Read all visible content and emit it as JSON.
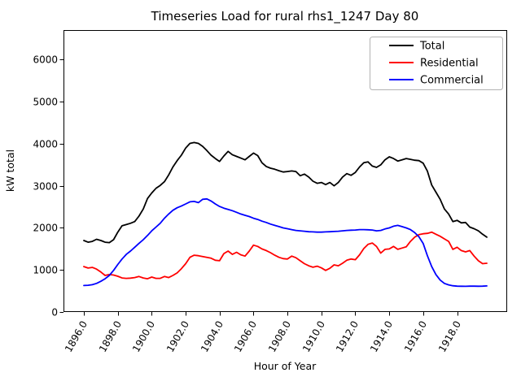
{
  "title": "Timeseries Load for rural rhs1_1247  Day 80",
  "chart_data": {
    "type": "line",
    "title": "Timeseries Load for rural rhs1_1247  Day 80",
    "xlabel": "Hour of Year",
    "ylabel": "kW total",
    "grid": false,
    "legend_position": "top-right",
    "xlim": [
      1894.8,
      1920.95
    ],
    "ylim": [
      0,
      6705
    ],
    "x_ticks": [
      1896,
      1898,
      1900,
      1902,
      1904,
      1906,
      1908,
      1910,
      1912,
      1914,
      1916,
      1918
    ],
    "x_tick_labels": [
      "1896.0",
      "1898.0",
      "1900.0",
      "1902.0",
      "1904.0",
      "1906.0",
      "1908.0",
      "1910.0",
      "1912.0",
      "1914.0",
      "1916.0",
      "1918.0"
    ],
    "y_ticks": [
      0,
      1000,
      2000,
      3000,
      4000,
      5000,
      6000
    ],
    "y_tick_labels": [
      "0",
      "1000",
      "2000",
      "3000",
      "4000",
      "5000",
      "6000"
    ],
    "x": [
      1896.0,
      1896.25,
      1896.5,
      1896.75,
      1897.0,
      1897.25,
      1897.5,
      1897.75,
      1898.0,
      1898.25,
      1898.5,
      1898.75,
      1899.0,
      1899.25,
      1899.5,
      1899.75,
      1900.0,
      1900.25,
      1900.5,
      1900.75,
      1901.0,
      1901.25,
      1901.5,
      1901.75,
      1902.0,
      1902.25,
      1902.5,
      1902.75,
      1903.0,
      1903.25,
      1903.5,
      1903.75,
      1904.0,
      1904.25,
      1904.5,
      1904.75,
      1905.0,
      1905.25,
      1905.5,
      1905.75,
      1906.0,
      1906.25,
      1906.5,
      1906.75,
      1907.0,
      1907.25,
      1907.5,
      1907.75,
      1908.0,
      1908.25,
      1908.5,
      1908.75,
      1909.0,
      1909.25,
      1909.5,
      1909.75,
      1910.0,
      1910.25,
      1910.5,
      1910.75,
      1911.0,
      1911.25,
      1911.5,
      1911.75,
      1912.0,
      1912.25,
      1912.5,
      1912.75,
      1913.0,
      1913.25,
      1913.5,
      1913.75,
      1914.0,
      1914.25,
      1914.5,
      1914.75,
      1915.0,
      1915.25,
      1915.5,
      1915.75,
      1916.0,
      1916.25,
      1916.5,
      1916.75,
      1917.0,
      1917.25,
      1917.5,
      1917.75,
      1918.0,
      1918.25,
      1918.5,
      1918.75,
      1919.0,
      1919.25,
      1919.5,
      1919.75
    ],
    "series": [
      {
        "name": "Total",
        "color": "#000000",
        "values": [
          1700,
          1660,
          1680,
          1730,
          1700,
          1660,
          1650,
          1720,
          1900,
          2050,
          2080,
          2110,
          2150,
          2280,
          2450,
          2700,
          2830,
          2940,
          3010,
          3100,
          3260,
          3450,
          3600,
          3730,
          3900,
          4010,
          4030,
          4010,
          3940,
          3840,
          3730,
          3650,
          3580,
          3710,
          3820,
          3740,
          3700,
          3660,
          3620,
          3700,
          3780,
          3720,
          3550,
          3460,
          3420,
          3395,
          3360,
          3330,
          3340,
          3355,
          3340,
          3240,
          3280,
          3210,
          3110,
          3060,
          3080,
          3030,
          3080,
          3000,
          3080,
          3210,
          3290,
          3250,
          3320,
          3450,
          3550,
          3570,
          3470,
          3440,
          3500,
          3620,
          3690,
          3650,
          3590,
          3620,
          3650,
          3630,
          3610,
          3600,
          3540,
          3350,
          3020,
          2850,
          2680,
          2450,
          2330,
          2150,
          2180,
          2120,
          2130,
          2020,
          1980,
          1930,
          1850,
          1780
        ]
      },
      {
        "name": "Residential",
        "color": "#ff0000",
        "values": [
          1080,
          1045,
          1060,
          1020,
          950,
          870,
          890,
          880,
          850,
          810,
          800,
          805,
          820,
          845,
          810,
          790,
          830,
          800,
          800,
          845,
          820,
          870,
          930,
          1030,
          1150,
          1300,
          1350,
          1340,
          1320,
          1300,
          1280,
          1230,
          1220,
          1390,
          1450,
          1370,
          1420,
          1360,
          1330,
          1450,
          1590,
          1560,
          1500,
          1460,
          1410,
          1350,
          1300,
          1270,
          1260,
          1330,
          1290,
          1220,
          1150,
          1100,
          1065,
          1090,
          1050,
          990,
          1040,
          1120,
          1100,
          1160,
          1230,
          1260,
          1245,
          1360,
          1510,
          1610,
          1640,
          1560,
          1400,
          1490,
          1500,
          1560,
          1490,
          1520,
          1550,
          1680,
          1780,
          1840,
          1860,
          1870,
          1900,
          1850,
          1800,
          1740,
          1680,
          1490,
          1540,
          1460,
          1430,
          1460,
          1330,
          1220,
          1150,
          1160
        ]
      },
      {
        "name": "Commercial",
        "color": "#0000ff",
        "values": [
          630,
          635,
          650,
          680,
          730,
          790,
          870,
          990,
          1130,
          1260,
          1370,
          1450,
          1540,
          1630,
          1720,
          1820,
          1930,
          2020,
          2110,
          2230,
          2330,
          2420,
          2480,
          2520,
          2570,
          2620,
          2630,
          2600,
          2680,
          2690,
          2640,
          2570,
          2510,
          2470,
          2440,
          2410,
          2370,
          2330,
          2300,
          2270,
          2230,
          2200,
          2160,
          2130,
          2090,
          2060,
          2030,
          2000,
          1980,
          1960,
          1940,
          1930,
          1920,
          1910,
          1905,
          1900,
          1900,
          1905,
          1910,
          1915,
          1920,
          1930,
          1940,
          1945,
          1950,
          1960,
          1960,
          1955,
          1950,
          1930,
          1940,
          1975,
          2000,
          2040,
          2060,
          2030,
          2000,
          1960,
          1890,
          1790,
          1630,
          1340,
          1080,
          890,
          760,
          680,
          645,
          625,
          615,
          612,
          610,
          615,
          615,
          612,
          615,
          620
        ]
      }
    ]
  }
}
